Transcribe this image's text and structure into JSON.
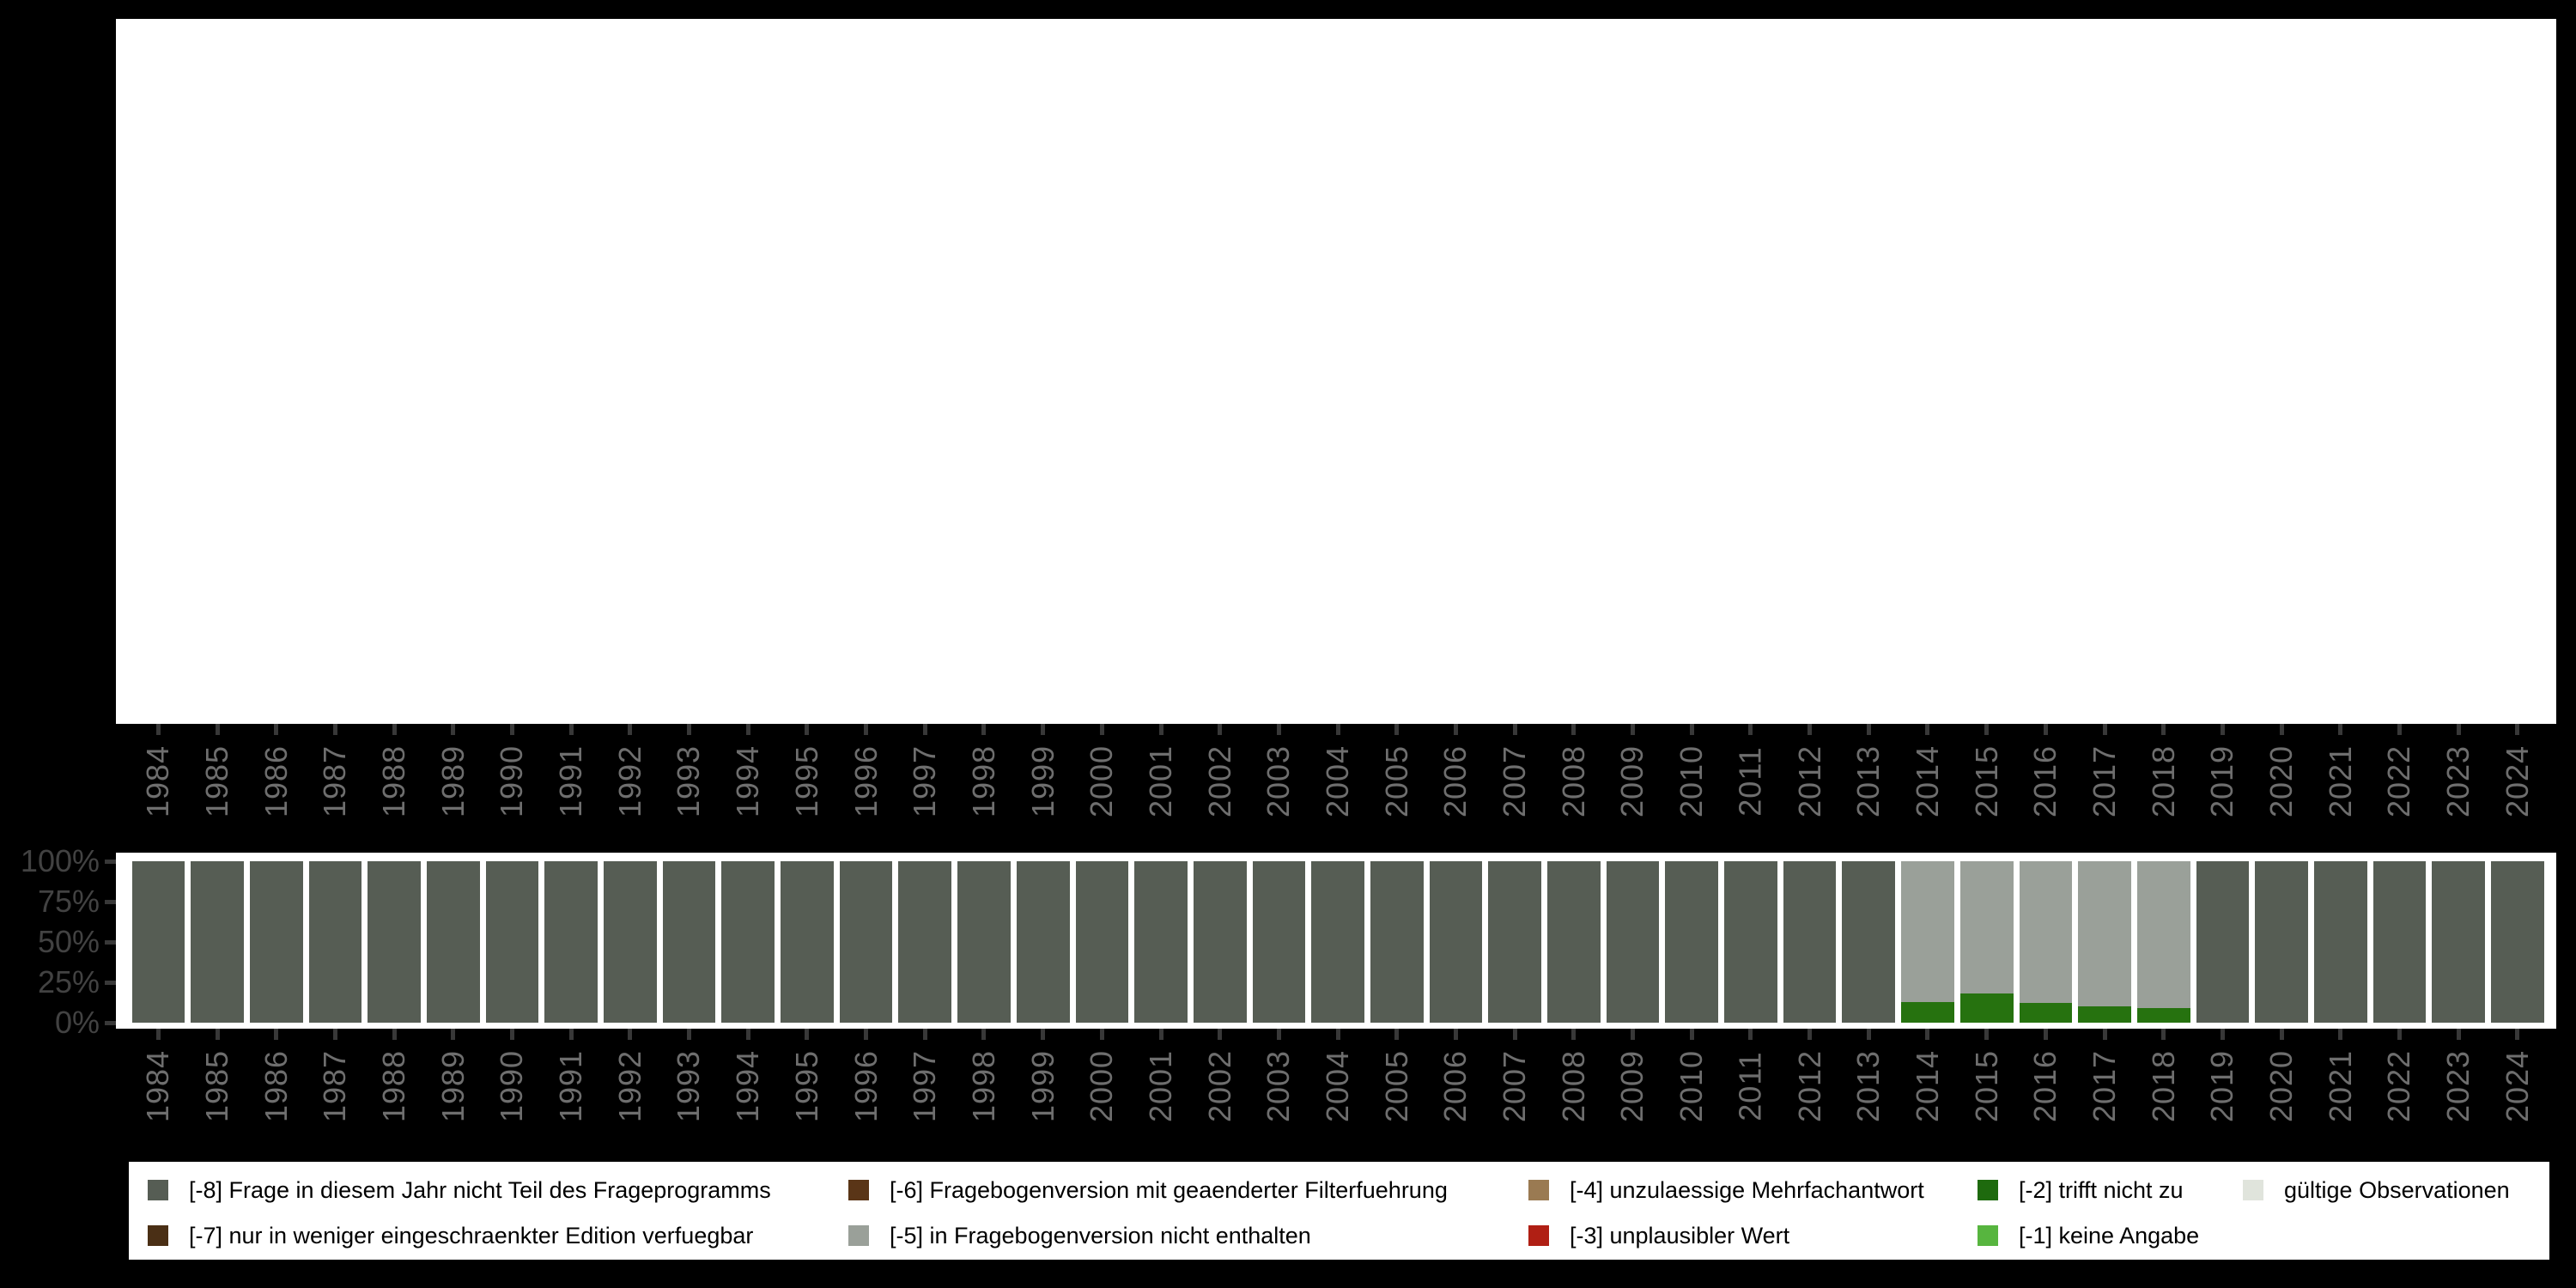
{
  "chart_data": {
    "type": "bar",
    "subtype": "stacked-percent",
    "title": "",
    "xlabel": "",
    "ylabel": "",
    "ylim": [
      0,
      100
    ],
    "grid": false,
    "legend_position": "bottom",
    "y_ticks": [
      "0%",
      "25%",
      "50%",
      "75%",
      "100%"
    ],
    "x": [
      1984,
      1985,
      1986,
      1987,
      1988,
      1989,
      1990,
      1991,
      1992,
      1993,
      1994,
      1995,
      1996,
      1997,
      1998,
      1999,
      2000,
      2001,
      2002,
      2003,
      2004,
      2005,
      2006,
      2007,
      2008,
      2009,
      2010,
      2011,
      2012,
      2013,
      2014,
      2015,
      2016,
      2017,
      2018,
      2019,
      2020,
      2021,
      2022,
      2023,
      2024
    ],
    "series": [
      {
        "name": "[-8] Frage in diesem Jahr nicht Teil des Frageprogramms",
        "color": "#565d54",
        "values": [
          100,
          100,
          100,
          100,
          100,
          100,
          100,
          100,
          100,
          100,
          100,
          100,
          100,
          100,
          100,
          100,
          100,
          100,
          100,
          100,
          100,
          100,
          100,
          100,
          100,
          100,
          100,
          100,
          100,
          100,
          0,
          0,
          0,
          0,
          0,
          100,
          100,
          100,
          100,
          100,
          100
        ]
      },
      {
        "name": "[-5] in Fragebogenversion nicht enthalten",
        "color": "#9aa099",
        "values": [
          0,
          0,
          0,
          0,
          0,
          0,
          0,
          0,
          0,
          0,
          0,
          0,
          0,
          0,
          0,
          0,
          0,
          0,
          0,
          0,
          0,
          0,
          0,
          0,
          0,
          0,
          0,
          0,
          0,
          0,
          87,
          82,
          87.5,
          90,
          91,
          0,
          0,
          0,
          0,
          0,
          0
        ]
      },
      {
        "name": "[-2] trifft nicht zu",
        "color": "#26720f",
        "values": [
          0,
          0,
          0,
          0,
          0,
          0,
          0,
          0,
          0,
          0,
          0,
          0,
          0,
          0,
          0,
          0,
          0,
          0,
          0,
          0,
          0,
          0,
          0,
          0,
          0,
          0,
          0,
          0,
          0,
          0,
          13,
          18,
          12.5,
          10,
          9,
          0,
          0,
          0,
          0,
          0,
          0
        ]
      }
    ]
  },
  "legend": {
    "columns": [
      {
        "entries": [
          {
            "label": "[-8] Frage in diesem Jahr nicht Teil des Frageprogramms",
            "color": "#565d54"
          },
          {
            "label": "[-7] nur in weniger eingeschraenkter Edition verfuegbar",
            "color": "#4a2f15"
          }
        ]
      },
      {
        "entries": [
          {
            "label": "[-6] Fragebogenversion mit geaenderter Filterfuehrung",
            "color": "#5a3517"
          },
          {
            "label": "[-5] in Fragebogenversion nicht enthalten",
            "color": "#9aa099"
          }
        ]
      },
      {
        "entries": [
          {
            "label": "[-4] unzulaessige Mehrfachantwort",
            "color": "#9a7a52"
          },
          {
            "label": "[-3] unplausibler Wert",
            "color": "#b01f14"
          }
        ]
      },
      {
        "entries": [
          {
            "label": "[-2] trifft nicht zu",
            "color": "#1e6a0e"
          },
          {
            "label": "[-1] keine Angabe",
            "color": "#57b53f"
          }
        ]
      },
      {
        "entries": [
          {
            "label": "gültige Observationen",
            "color": "#e0e4dc"
          }
        ]
      }
    ]
  }
}
